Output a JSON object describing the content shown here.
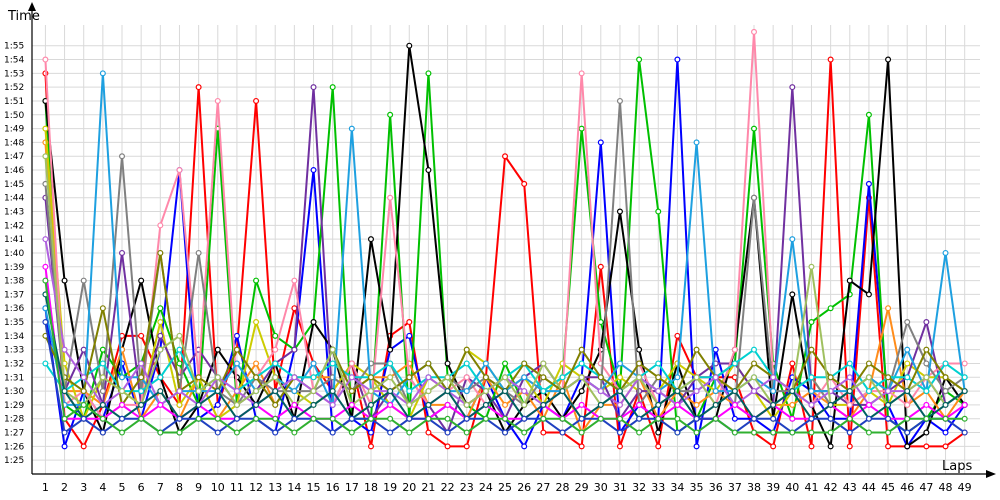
{
  "chart_data": {
    "type": "line",
    "xlabel": "Laps",
    "ylabel": "Time",
    "grid": true,
    "x": [
      1,
      2,
      3,
      4,
      5,
      6,
      7,
      8,
      9,
      10,
      11,
      12,
      13,
      14,
      15,
      16,
      17,
      18,
      19,
      20,
      21,
      22,
      23,
      24,
      25,
      26,
      27,
      28,
      29,
      30,
      31,
      32,
      33,
      34,
      35,
      36,
      37,
      38,
      39,
      40,
      41,
      42,
      43,
      44,
      45,
      46,
      47,
      48,
      49
    ],
    "x_tick_labels": [
      "1",
      "2",
      "3",
      "4",
      "5",
      "6",
      "7",
      "8",
      "9",
      "10",
      "11",
      "12",
      "13",
      "14",
      "15",
      "16",
      "17",
      "18",
      "19",
      "20",
      "21",
      "22",
      "23",
      "24",
      "25",
      "26",
      "27",
      "28",
      "29",
      "30",
      "31",
      "32",
      "33",
      "34",
      "35",
      "36",
      "37",
      "38",
      "39",
      "40",
      "41",
      "42",
      "43",
      "44",
      "45",
      "46",
      "47",
      "48",
      "49"
    ],
    "y_ticks_seconds": [
      85,
      86,
      87,
      88,
      89,
      90,
      91,
      92,
      93,
      94,
      95,
      96,
      97,
      98,
      99,
      100,
      101,
      102,
      103,
      104,
      105,
      106,
      107,
      108,
      109,
      110,
      111,
      112,
      113,
      114,
      115
    ],
    "y_tick_labels": [
      "1:25",
      "1:26",
      "1:27",
      "1:28",
      "1:29",
      "1:30",
      "1:31",
      "1:32",
      "1:33",
      "1:34",
      "1:35",
      "1:36",
      "1:37",
      "1:38",
      "1:39",
      "1:40",
      "1:41",
      "1:42",
      "1:43",
      "1:44",
      "1:45",
      "1:46",
      "1:47",
      "1:48",
      "1:49",
      "1:50",
      "1:51",
      "1:52",
      "1:53",
      "1:54",
      "1:55"
    ],
    "ylim": [
      84,
      116.5
    ],
    "xlim": [
      0.3,
      49.8
    ],
    "series": [
      {
        "color": "#ff0000",
        "values": [
          113,
          88,
          86,
          89,
          94,
          94,
          91,
          89,
          112,
          89,
          93,
          111,
          90,
          96,
          92,
          90,
          92,
          86,
          94,
          95,
          87,
          86,
          86,
          91,
          107,
          105,
          87,
          87,
          86,
          99,
          86,
          90,
          86,
          94,
          91,
          91,
          91,
          87,
          86,
          92,
          86,
          114,
          86,
          104,
          86,
          86,
          86,
          86,
          87
        ]
      },
      {
        "color": "#0000ff",
        "values": [
          96,
          86,
          90,
          88,
          92,
          88,
          93,
          106,
          88,
          89,
          94,
          88,
          87,
          93,
          106,
          87,
          88,
          87,
          93,
          94,
          88,
          89,
          88,
          91,
          88,
          86,
          89,
          88,
          91,
          108,
          87,
          89,
          88,
          114,
          86,
          93,
          88,
          88,
          87,
          91,
          90,
          88,
          88,
          105,
          89,
          86,
          88,
          87,
          89
        ]
      },
      {
        "color": "#00c000",
        "values": [
          111,
          89,
          88,
          93,
          91,
          92,
          96,
          92,
          89,
          109,
          89,
          98,
          94,
          93,
          95,
          112,
          88,
          88,
          110,
          88,
          113,
          91,
          89,
          88,
          92,
          89,
          90,
          91,
          109,
          95,
          90,
          114,
          103,
          87,
          88,
          91,
          92,
          109,
          92,
          88,
          95,
          96,
          97,
          110,
          88,
          87,
          88,
          90,
          89
        ]
      },
      {
        "color": "#000000",
        "values": [
          111,
          98,
          90,
          87,
          93,
          98,
          91,
          87,
          89,
          93,
          91,
          89,
          92,
          88,
          95,
          93,
          88,
          101,
          93,
          115,
          106,
          92,
          89,
          90,
          87,
          89,
          90,
          88,
          90,
          93,
          103,
          93,
          87,
          92,
          88,
          88,
          93,
          104,
          88,
          97,
          89,
          86,
          98,
          97,
          114,
          86,
          87,
          91,
          89
        ]
      },
      {
        "color": "#ff8c1a",
        "values": [
          108,
          90,
          90,
          89,
          93,
          88,
          90,
          88,
          91,
          88,
          90,
          92,
          89,
          91,
          91,
          91,
          90,
          91,
          91,
          92,
          89,
          89,
          88,
          91,
          89,
          90,
          88,
          91,
          87,
          89,
          89,
          91,
          88,
          90,
          89,
          90,
          89,
          88,
          89,
          89,
          90,
          89,
          88,
          90,
          96,
          89,
          90,
          88,
          90
        ]
      },
      {
        "color": "#cccc00",
        "values": [
          109,
          92,
          88,
          91,
          90,
          89,
          95,
          89,
          91,
          88,
          89,
          95,
          91,
          90,
          89,
          90,
          92,
          91,
          89,
          88,
          91,
          90,
          93,
          92,
          90,
          91,
          89,
          92,
          91,
          90,
          91,
          90,
          90,
          92,
          91,
          90,
          92,
          90,
          88,
          90,
          91,
          89,
          89,
          90,
          89,
          92,
          91,
          91,
          90
        ]
      },
      {
        "color": "#7030a0",
        "values": [
          104,
          90,
          93,
          89,
          100,
          89,
          94,
          91,
          93,
          91,
          89,
          90,
          92,
          93,
          112,
          89,
          92,
          88,
          90,
          91,
          89,
          87,
          91,
          90,
          88,
          91,
          92,
          90,
          91,
          91,
          88,
          90,
          90,
          89,
          91,
          92,
          92,
          90,
          89,
          112,
          90,
          90,
          89,
          89,
          90,
          91,
          95,
          89,
          90
        ]
      },
      {
        "color": "#ff88aa",
        "values": [
          114,
          89,
          90,
          88,
          89,
          89,
          102,
          106,
          91,
          111,
          90,
          91,
          93,
          98,
          90,
          89,
          92,
          89,
          104,
          91,
          89,
          90,
          91,
          89,
          90,
          91,
          90,
          90,
          113,
          92,
          90,
          92,
          89,
          90,
          91,
          89,
          93,
          116,
          91,
          90,
          89,
          91,
          89,
          90,
          90,
          89,
          91,
          92,
          92
        ]
      },
      {
        "color": "#808080",
        "values": [
          105,
          90,
          98,
          90,
          107,
          90,
          100,
          90,
          100,
          90,
          89,
          91,
          90,
          90,
          90,
          91,
          90,
          92,
          92,
          89,
          90,
          91,
          90,
          91,
          90,
          89,
          91,
          90,
          91,
          90,
          111,
          89,
          91,
          90,
          90,
          91,
          89,
          104,
          90,
          90,
          91,
          89,
          90,
          91,
          90,
          95,
          92,
          90,
          91
        ]
      },
      {
        "color": "#1ea0e0",
        "values": [
          96,
          89,
          89,
          113,
          91,
          91,
          89,
          90,
          90,
          90,
          92,
          90,
          91,
          90,
          92,
          89,
          109,
          90,
          89,
          91,
          92,
          90,
          90,
          92,
          90,
          91,
          90,
          90,
          91,
          90,
          92,
          91,
          90,
          91,
          108,
          90,
          90,
          91,
          90,
          101,
          90,
          90,
          90,
          91,
          90,
          93,
          90,
          100,
          90
        ]
      },
      {
        "color": "#00d0d0",
        "values": [
          92,
          90,
          91,
          92,
          90,
          90,
          91,
          93,
          90,
          91,
          90,
          91,
          92,
          91,
          91,
          92,
          91,
          91,
          92,
          90,
          91,
          91,
          92,
          90,
          91,
          92,
          90,
          91,
          92,
          91,
          90,
          91,
          92,
          90,
          91,
          91,
          92,
          93,
          91,
          90,
          91,
          91,
          92,
          90,
          91,
          91,
          90,
          92,
          91
        ]
      },
      {
        "color": "#808000",
        "values": [
          94,
          91,
          90,
          96,
          89,
          91,
          100,
          90,
          91,
          90,
          93,
          91,
          89,
          91,
          90,
          93,
          90,
          91,
          90,
          91,
          92,
          90,
          93,
          91,
          90,
          92,
          91,
          90,
          93,
          91,
          90,
          92,
          91,
          90,
          93,
          91,
          90,
          92,
          91,
          90,
          93,
          91,
          90,
          92,
          91,
          90,
          93,
          91,
          90
        ]
      },
      {
        "color": "#b060e0",
        "values": [
          101,
          93,
          91,
          89,
          90,
          92,
          89,
          90,
          89,
          91,
          90,
          89,
          90,
          91,
          90,
          89,
          91,
          90,
          90,
          89,
          91,
          90,
          89,
          90,
          91,
          90,
          89,
          90,
          91,
          90,
          89,
          91,
          90,
          89,
          90,
          91,
          89,
          90,
          91,
          90,
          89,
          90,
          91,
          89,
          90,
          90,
          91,
          89,
          90
        ]
      },
      {
        "color": "#a0c060",
        "values": [
          107,
          90,
          89,
          91,
          90,
          89,
          93,
          94,
          90,
          91,
          89,
          90,
          91,
          89,
          90,
          93,
          89,
          90,
          91,
          89,
          90,
          91,
          89,
          90,
          91,
          89,
          92,
          90,
          91,
          89,
          90,
          91,
          89,
          90,
          91,
          89,
          90,
          91,
          89,
          90,
          99,
          89,
          90,
          91,
          89,
          90,
          91,
          89,
          90
        ]
      },
      {
        "color": "#ff00ff",
        "values": [
          99,
          88,
          88,
          88,
          89,
          88,
          89,
          88,
          89,
          88,
          88,
          89,
          88,
          89,
          88,
          88,
          89,
          88,
          89,
          88,
          88,
          89,
          88,
          89,
          88,
          88,
          89,
          88,
          89,
          88,
          88,
          89,
          88,
          89,
          88,
          88,
          89,
          88,
          89,
          88,
          88,
          89,
          88,
          89,
          88,
          88,
          89,
          88,
          89
        ]
      },
      {
        "color": "#006060",
        "values": [
          97,
          90,
          88,
          89,
          88,
          89,
          90,
          88,
          89,
          90,
          88,
          89,
          90,
          88,
          89,
          90,
          88,
          89,
          90,
          88,
          89,
          90,
          88,
          89,
          90,
          88,
          89,
          90,
          88,
          89,
          90,
          88,
          89,
          90,
          88,
          89,
          90,
          88,
          89,
          90,
          88,
          89,
          90,
          88,
          89,
          90,
          88,
          89,
          90
        ]
      },
      {
        "color": "#2040c0",
        "values": [
          95,
          87,
          88,
          87,
          88,
          88,
          87,
          88,
          88,
          87,
          88,
          88,
          87,
          88,
          88,
          87,
          88,
          88,
          87,
          88,
          88,
          87,
          88,
          88,
          87,
          88,
          88,
          87,
          88,
          88,
          87,
          88,
          88,
          87,
          88,
          88,
          87,
          88,
          88,
          87,
          88,
          88,
          87,
          88,
          88,
          87,
          88,
          88,
          87
        ]
      },
      {
        "color": "#30b030",
        "values": [
          98,
          88,
          89,
          88,
          87,
          88,
          87,
          87,
          88,
          88,
          87,
          88,
          88,
          87,
          88,
          88,
          87,
          88,
          88,
          87,
          88,
          88,
          87,
          88,
          88,
          87,
          88,
          88,
          87,
          88,
          88,
          87,
          88,
          88,
          87,
          88,
          87,
          87,
          87,
          87,
          87,
          87,
          88,
          87,
          87,
          88,
          88,
          88,
          88
        ]
      }
    ]
  }
}
